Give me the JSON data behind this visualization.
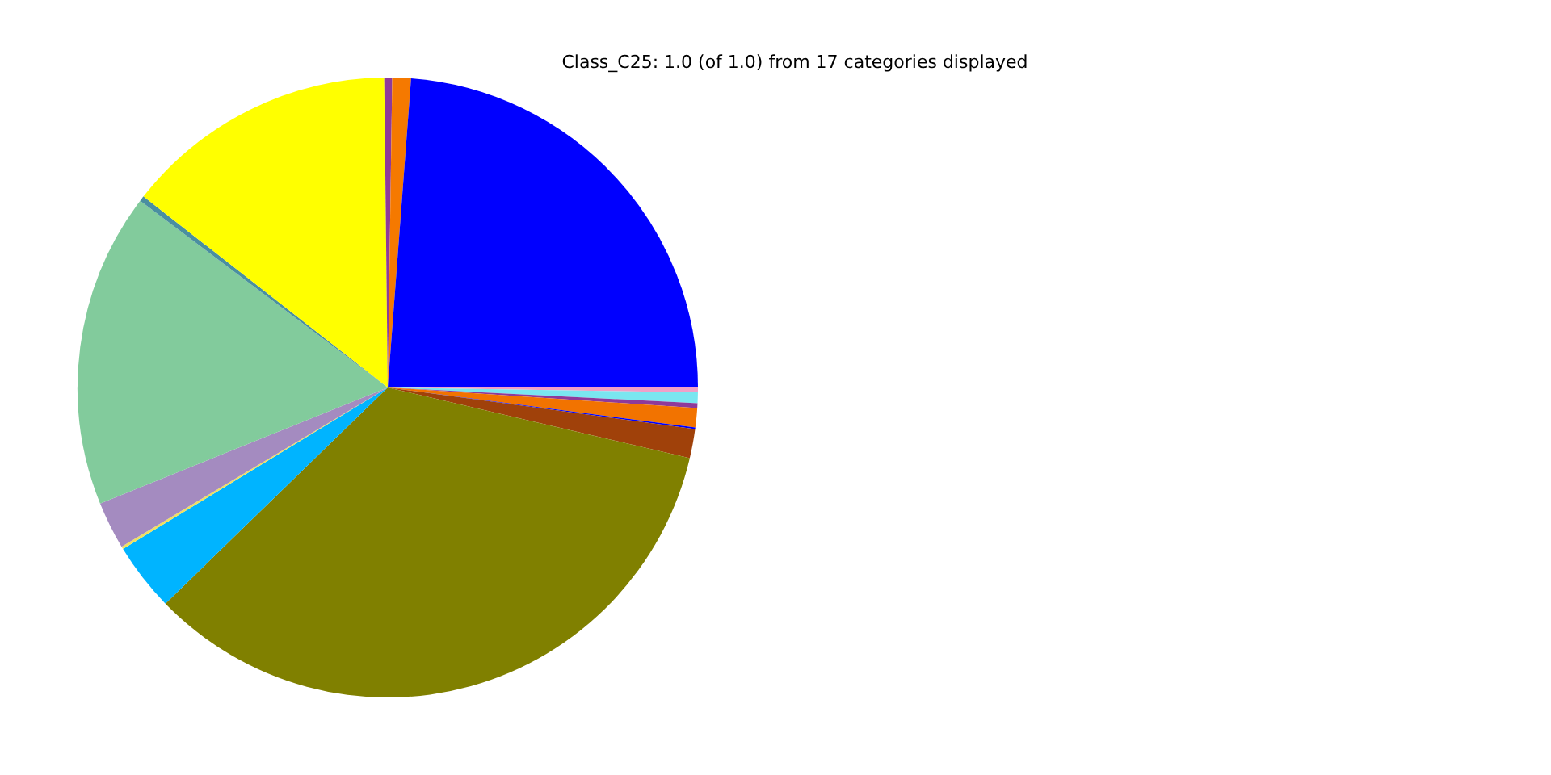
{
  "chart_data": {
    "type": "pie",
    "title": "Class_C25: 1.0 (of 1.0) from 17 categories displayed",
    "categories": [
      null,
      null,
      null,
      null,
      null,
      null,
      null,
      null,
      null,
      null,
      null,
      null,
      null,
      null,
      null,
      null
    ],
    "values": [
      23.8,
      0.97,
      0.41,
      14.25,
      0.28,
      16.4,
      2.47,
      0.14,
      3.56,
      34.06,
      1.52,
      0.08,
      1.0,
      0.25,
      0.56,
      0.25
    ],
    "colors": [
      "#0000ff",
      "#f57900",
      "#8e3a9a",
      "#ffff00",
      "#4a8fa0",
      "#82cb9c",
      "#a48bc0",
      "#f0e060",
      "#00b4ff",
      "#808000",
      "#a0410a",
      "#0000ff",
      "#f27300",
      "#8e3a9a",
      "#7ae6f0",
      "#f0a0c8"
    ],
    "legend": false
  }
}
